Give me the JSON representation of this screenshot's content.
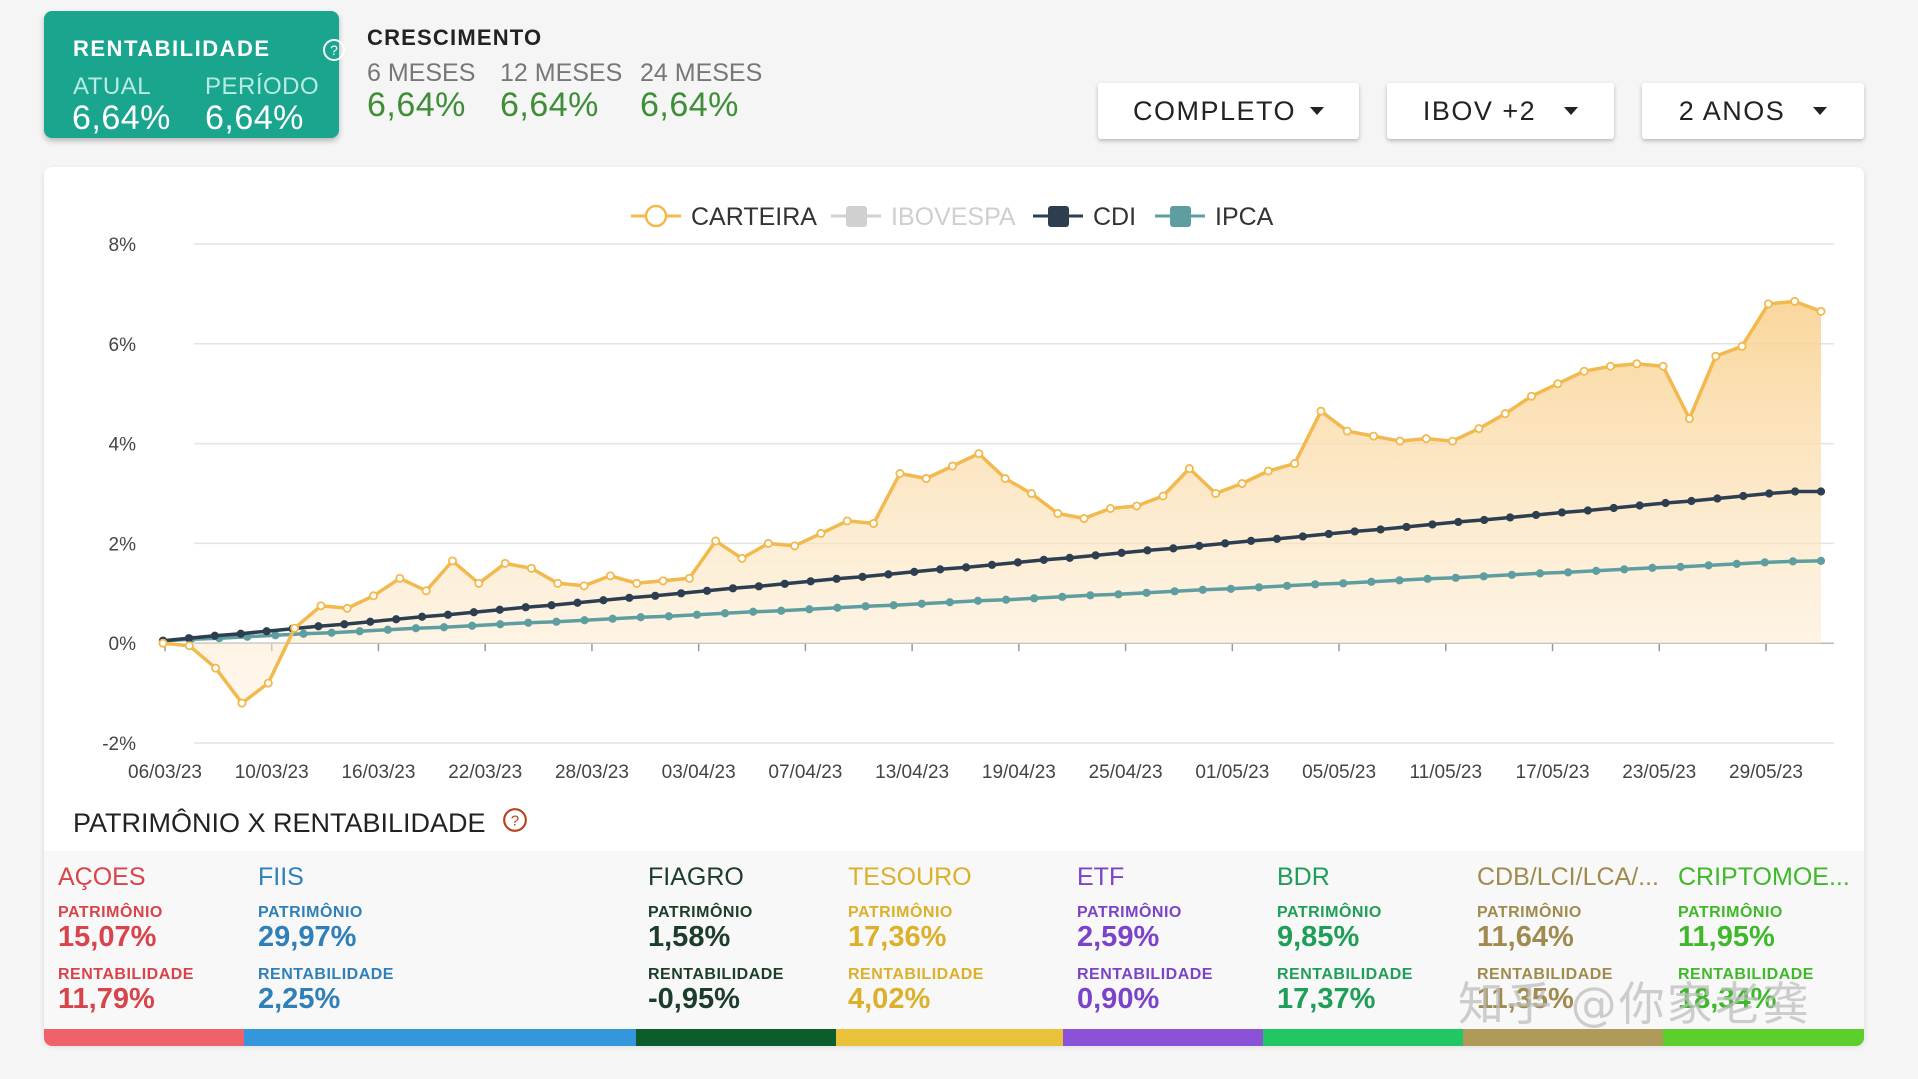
{
  "rentabilidade": {
    "title": "RENTABILIDADE",
    "atual_label": "ATUAL",
    "atual_value": "6,64%",
    "periodo_label": "PERÍODO",
    "periodo_value": "6,64%"
  },
  "crescimento": {
    "title": "CRESCIMENTO",
    "items": [
      {
        "label": "6 MESES",
        "value": "6,64%"
      },
      {
        "label": "12 MESES",
        "value": "6,64%"
      },
      {
        "label": "24 MESES",
        "value": "6,64%"
      }
    ]
  },
  "filters": {
    "mode": "COMPLETO",
    "benchmark": "IBOV +2",
    "period": "2 ANOS"
  },
  "chart_data": {
    "type": "line",
    "legend_position": "top-center",
    "grid": true,
    "ylim": [
      -2,
      8
    ],
    "yticks": [
      "8%",
      "6%",
      "4%",
      "2%",
      "0%",
      "-2%"
    ],
    "xticks": [
      "06/03/23",
      "10/03/23",
      "16/03/23",
      "22/03/23",
      "28/03/23",
      "03/04/23",
      "07/04/23",
      "13/04/23",
      "19/04/23",
      "25/04/23",
      "01/05/23",
      "05/05/23",
      "11/05/23",
      "17/05/23",
      "23/05/23",
      "29/05/23"
    ],
    "colors": {
      "CARTEIRA": "#f1b94e",
      "IBOVESPA": "#c8c8c8",
      "CDI": "#2c3e50",
      "IPCA": "#5e9ea0"
    },
    "series": [
      {
        "name": "CARTEIRA",
        "hidden": false,
        "area": true,
        "values": [
          0.0,
          -0.05,
          -0.5,
          -1.2,
          -0.8,
          0.3,
          0.75,
          0.7,
          0.95,
          1.3,
          1.05,
          1.65,
          1.2,
          1.6,
          1.5,
          1.2,
          1.15,
          1.35,
          1.2,
          1.25,
          1.3,
          2.05,
          1.7,
          2.0,
          1.95,
          2.2,
          2.45,
          2.4,
          3.4,
          3.3,
          3.55,
          3.8,
          3.3,
          3.0,
          2.6,
          2.5,
          2.7,
          2.75,
          2.95,
          3.5,
          3.0,
          3.2,
          3.45,
          3.6,
          4.65,
          4.25,
          4.15,
          4.05,
          4.1,
          4.05,
          4.3,
          4.6,
          4.95,
          5.2,
          5.45,
          5.55,
          5.6,
          5.55,
          4.5,
          5.75,
          5.95,
          6.8,
          6.85,
          6.65
        ]
      },
      {
        "name": "IBOVESPA",
        "hidden": true,
        "values": []
      },
      {
        "name": "CDI",
        "hidden": false,
        "values": [
          0.05,
          0.1,
          0.15,
          0.19,
          0.24,
          0.29,
          0.34,
          0.38,
          0.43,
          0.48,
          0.53,
          0.57,
          0.62,
          0.67,
          0.72,
          0.76,
          0.81,
          0.86,
          0.91,
          0.95,
          1.0,
          1.05,
          1.1,
          1.14,
          1.19,
          1.24,
          1.29,
          1.33,
          1.38,
          1.43,
          1.48,
          1.52,
          1.57,
          1.62,
          1.67,
          1.71,
          1.76,
          1.81,
          1.86,
          1.9,
          1.95,
          2.0,
          2.05,
          2.09,
          2.14,
          2.19,
          2.24,
          2.28,
          2.33,
          2.38,
          2.43,
          2.47,
          2.52,
          2.57,
          2.62,
          2.66,
          2.71,
          2.76,
          2.81,
          2.85,
          2.9,
          2.95,
          3.0,
          3.04,
          3.04
        ]
      },
      {
        "name": "IPCA",
        "hidden": false,
        "values": [
          0.05,
          0.08,
          0.1,
          0.13,
          0.16,
          0.19,
          0.21,
          0.24,
          0.27,
          0.3,
          0.32,
          0.35,
          0.38,
          0.41,
          0.43,
          0.46,
          0.49,
          0.52,
          0.54,
          0.57,
          0.6,
          0.63,
          0.65,
          0.68,
          0.71,
          0.74,
          0.76,
          0.79,
          0.82,
          0.85,
          0.87,
          0.9,
          0.93,
          0.96,
          0.98,
          1.01,
          1.04,
          1.07,
          1.09,
          1.12,
          1.15,
          1.18,
          1.2,
          1.23,
          1.26,
          1.29,
          1.31,
          1.34,
          1.37,
          1.4,
          1.42,
          1.45,
          1.48,
          1.51,
          1.53,
          1.56,
          1.59,
          1.62,
          1.64,
          1.65
        ]
      }
    ]
  },
  "patrimonio": {
    "title": "PATRIMÔNIO X RENTABILIDADE",
    "patrimonio_label": "PATRIMÔNIO",
    "rentabilidade_label": "RENTABILIDADE",
    "assets": [
      {
        "name": "AÇOES",
        "patrimonio": "15,07%",
        "rentabilidade": "11,79%",
        "color": "#d9434a",
        "bar_color": "#f0626a",
        "share": 10.8
      },
      {
        "name": "FIIS",
        "patrimonio": "29,97%",
        "rentabilidade": "2,25%",
        "color": "#2f7fb8",
        "bar_color": "#3597db",
        "share": 21.6
      },
      {
        "name": "FIAGRO",
        "patrimonio": "1,58%",
        "rentabilidade": "-0,95%",
        "color": "#1b3d2a",
        "bar_color": "#0d5c2b",
        "share": 11.0
      },
      {
        "name": "TESOURO",
        "patrimonio": "17,36%",
        "rentabilidade": "4,02%",
        "color": "#dcb02a",
        "bar_color": "#e9c23a",
        "share": 12.5
      },
      {
        "name": "ETF",
        "patrimonio": "2,59%",
        "rentabilidade": "0,90%",
        "color": "#7b43c9",
        "bar_color": "#8a52d6",
        "share": 11.0
      },
      {
        "name": "BDR",
        "patrimonio": "9,85%",
        "rentabilidade": "17,37%",
        "color": "#1e9e58",
        "bar_color": "#21c764",
        "share": 11.0
      },
      {
        "name": "CDB/LCI/LCA/...",
        "patrimonio": "11,64%",
        "rentabilidade": "11,35%",
        "color": "#a08b4e",
        "bar_color": "#b09a5a",
        "share": 11.0
      },
      {
        "name": "CRIPTOMOE...",
        "patrimonio": "11,95%",
        "rentabilidade": "18,34%",
        "color": "#3fb82a",
        "bar_color": "#5dcf2a",
        "share": 11.1
      }
    ]
  },
  "watermark": "知乎 @你家老龚"
}
